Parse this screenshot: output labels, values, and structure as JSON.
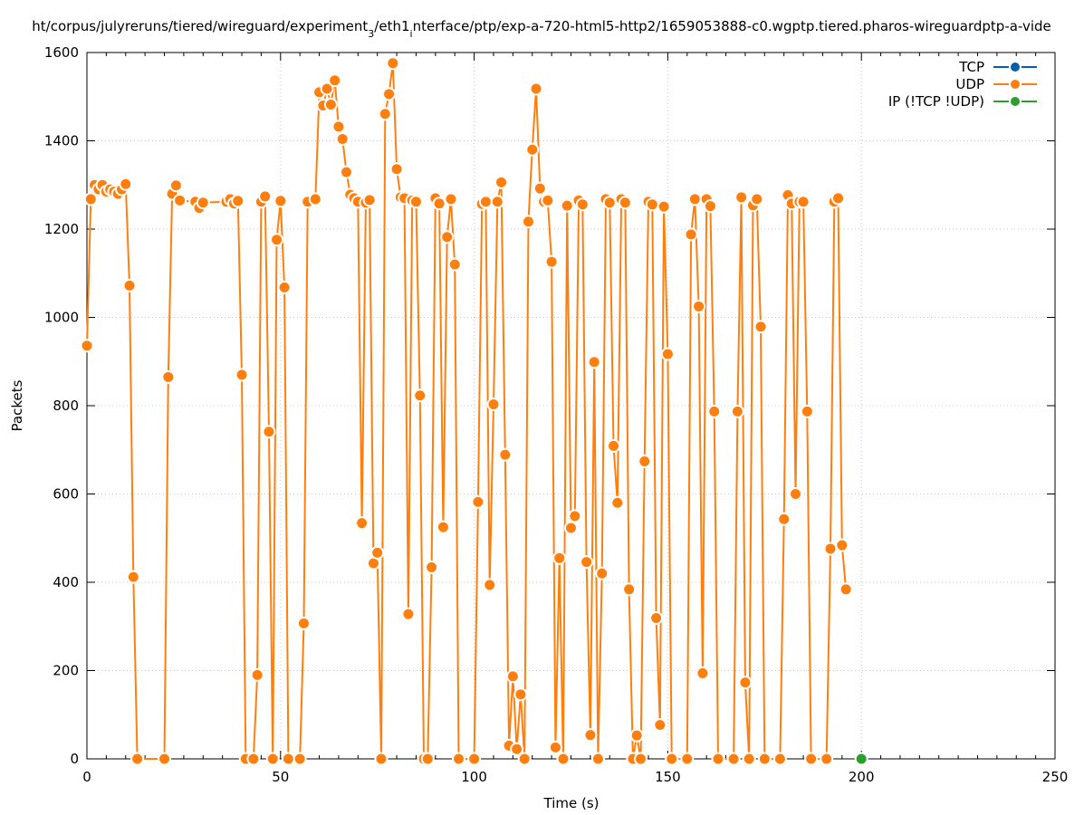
{
  "chart_data": {
    "type": "line",
    "title_parts": [
      "ht/corpus/julyreruns/tiered/wireguard/experiment",
      "3",
      "/eth1",
      "i",
      "nterface/ptp/exp-a-720-html5-http2/1659053888-c0.wgptp.tiered.pharos-wireguardptp-a-vide"
    ],
    "xlabel": "Time (s)",
    "ylabel": "Packets",
    "xlim": [
      0,
      250
    ],
    "ylim": [
      0,
      1600
    ],
    "xticks": [
      0,
      50,
      100,
      150,
      200,
      250
    ],
    "yticks": [
      0,
      200,
      400,
      600,
      800,
      1000,
      1200,
      1400,
      1600
    ],
    "grid": true,
    "legend_position": "top-right",
    "series": [
      {
        "name": "TCP",
        "color": "#0060ad",
        "points": []
      },
      {
        "name": "UDP",
        "color": "#ff7f0e",
        "points": [
          [
            0,
            936
          ],
          [
            1,
            1268
          ],
          [
            2,
            1300
          ],
          [
            3,
            1290
          ],
          [
            4,
            1300
          ],
          [
            5,
            1285
          ],
          [
            6,
            1290
          ],
          [
            7,
            1285
          ],
          [
            8,
            1280
          ],
          [
            9,
            1290
          ],
          [
            10,
            1302
          ],
          [
            11,
            1072
          ],
          [
            12,
            412
          ],
          [
            13,
            0
          ],
          [
            20,
            0
          ],
          [
            21,
            865
          ],
          [
            22,
            1280
          ],
          [
            23,
            1299
          ],
          [
            24,
            1265
          ],
          [
            28,
            1262
          ],
          [
            29,
            1248
          ],
          [
            30,
            1260
          ],
          [
            36,
            1262
          ],
          [
            37,
            1268
          ],
          [
            38,
            1258
          ],
          [
            39,
            1264
          ],
          [
            40,
            870
          ],
          [
            41,
            0
          ],
          [
            43,
            0
          ],
          [
            44,
            190
          ],
          [
            45,
            1262
          ],
          [
            46,
            1274
          ],
          [
            47,
            741
          ],
          [
            48,
            0
          ],
          [
            49,
            1176
          ],
          [
            50,
            1264
          ],
          [
            51,
            1068
          ],
          [
            52,
            0
          ],
          [
            55,
            0
          ],
          [
            56,
            307
          ],
          [
            57,
            1262
          ],
          [
            59,
            1268
          ],
          [
            60,
            1510
          ],
          [
            61,
            1480
          ],
          [
            62,
            1518
          ],
          [
            63,
            1482
          ],
          [
            64,
            1537
          ],
          [
            65,
            1432
          ],
          [
            66,
            1404
          ],
          [
            67,
            1329
          ],
          [
            68,
            1278
          ],
          [
            69,
            1270
          ],
          [
            70,
            1262
          ],
          [
            71,
            534
          ],
          [
            72,
            1260
          ],
          [
            73,
            1266
          ],
          [
            74,
            443
          ],
          [
            75,
            467
          ],
          [
            76,
            0
          ],
          [
            77,
            1461
          ],
          [
            78,
            1506
          ],
          [
            79,
            1576
          ],
          [
            80,
            1336
          ],
          [
            81,
            1272
          ],
          [
            82,
            1270
          ],
          [
            83,
            328
          ],
          [
            84,
            1265
          ],
          [
            85,
            1262
          ],
          [
            86,
            823
          ],
          [
            87,
            0
          ],
          [
            88,
            0
          ],
          [
            89,
            434
          ],
          [
            90,
            1270
          ],
          [
            91,
            1258
          ],
          [
            92,
            525
          ],
          [
            93,
            1182
          ],
          [
            94,
            1268
          ],
          [
            95,
            1120
          ],
          [
            96,
            0
          ],
          [
            100,
            0
          ],
          [
            101,
            582
          ],
          [
            102,
            1257
          ],
          [
            103,
            1262
          ],
          [
            104,
            394
          ],
          [
            105,
            803
          ],
          [
            106,
            1262
          ],
          [
            107,
            1306
          ],
          [
            108,
            689
          ],
          [
            109,
            30
          ],
          [
            110,
            187
          ],
          [
            111,
            22
          ],
          [
            112,
            146
          ],
          [
            113,
            0
          ],
          [
            114,
            1217
          ],
          [
            115,
            1380
          ],
          [
            116,
            1518
          ],
          [
            117,
            1292
          ],
          [
            118,
            1262
          ],
          [
            119,
            1265
          ],
          [
            120,
            1126
          ],
          [
            121,
            26
          ],
          [
            122,
            455
          ],
          [
            123,
            0
          ],
          [
            124,
            1253
          ],
          [
            125,
            523
          ],
          [
            126,
            550
          ],
          [
            127,
            1265
          ],
          [
            128,
            1256
          ],
          [
            129,
            446
          ],
          [
            130,
            54
          ],
          [
            131,
            899
          ],
          [
            132,
            0
          ],
          [
            133,
            420
          ],
          [
            134,
            1268
          ],
          [
            135,
            1260
          ],
          [
            136,
            709
          ],
          [
            137,
            580
          ],
          [
            138,
            1268
          ],
          [
            139,
            1260
          ],
          [
            140,
            384
          ],
          [
            141,
            0
          ],
          [
            142,
            53
          ],
          [
            143,
            0
          ],
          [
            144,
            674
          ],
          [
            145,
            1262
          ],
          [
            146,
            1256
          ],
          [
            147,
            319
          ],
          [
            148,
            77
          ],
          [
            149,
            1251
          ],
          [
            150,
            917
          ],
          [
            151,
            0
          ],
          [
            155,
            0
          ],
          [
            156,
            1188
          ],
          [
            157,
            1268
          ],
          [
            158,
            1025
          ],
          [
            159,
            194
          ],
          [
            160,
            1268
          ],
          [
            161,
            1252
          ],
          [
            162,
            787
          ],
          [
            163,
            0
          ],
          [
            167,
            0
          ],
          [
            168,
            787
          ],
          [
            169,
            1272
          ],
          [
            170,
            173
          ],
          [
            171,
            0
          ],
          [
            172,
            1254
          ],
          [
            173,
            1268
          ],
          [
            174,
            979
          ],
          [
            175,
            0
          ],
          [
            179,
            0
          ],
          [
            180,
            543
          ],
          [
            181,
            1277
          ],
          [
            182,
            1258
          ],
          [
            183,
            600
          ],
          [
            184,
            1262
          ],
          [
            185,
            1262
          ],
          [
            186,
            787
          ],
          [
            187,
            0
          ],
          [
            191,
            0
          ],
          [
            192,
            476
          ],
          [
            193,
            1262
          ],
          [
            194,
            1270
          ],
          [
            195,
            484
          ],
          [
            196,
            384
          ]
        ]
      },
      {
        "name": "IP (!TCP  !UDP)",
        "color": "#2ca02c",
        "points": [
          [
            200,
            0
          ]
        ]
      }
    ]
  }
}
